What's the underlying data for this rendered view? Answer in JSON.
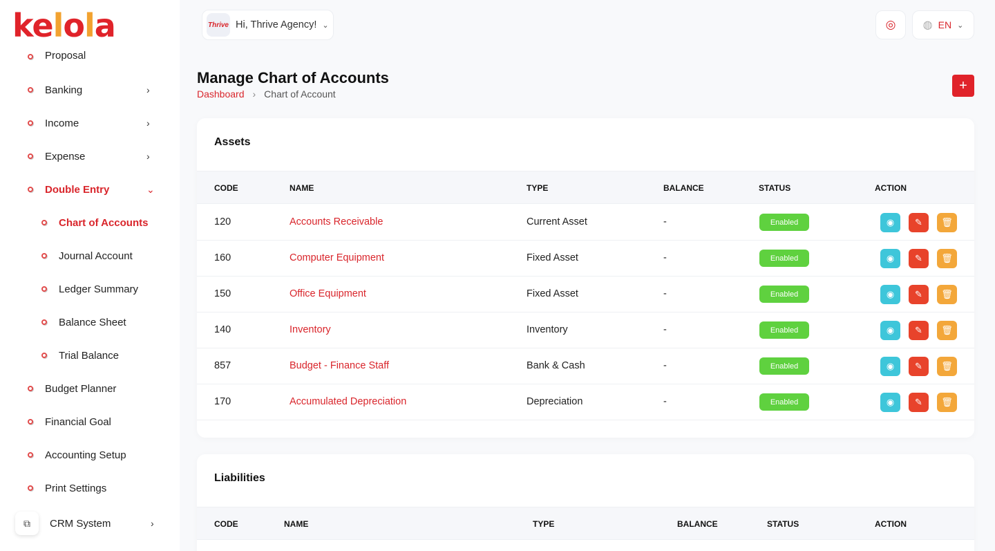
{
  "brand": {
    "logo_text": "kelola"
  },
  "header": {
    "greeting": "Hi, Thrive Agency!",
    "avatar_text": "Thrive",
    "language": "EN"
  },
  "sidebar": {
    "items": [
      {
        "label": "Proposal"
      },
      {
        "label": "Banking",
        "chevron": "›"
      },
      {
        "label": "Income",
        "chevron": "›"
      },
      {
        "label": "Expense",
        "chevron": "›"
      },
      {
        "label": "Double Entry",
        "chevron": "⌄"
      },
      {
        "label": "Chart of Accounts"
      },
      {
        "label": "Journal Account"
      },
      {
        "label": "Ledger Summary"
      },
      {
        "label": "Balance Sheet"
      },
      {
        "label": "Trial Balance"
      },
      {
        "label": "Budget Planner"
      },
      {
        "label": "Financial Goal"
      },
      {
        "label": "Accounting Setup"
      },
      {
        "label": "Print Settings"
      }
    ],
    "crm": {
      "label": "CRM System",
      "chevron": "›"
    }
  },
  "page": {
    "title": "Manage Chart of Accounts",
    "breadcrumb": {
      "home": "Dashboard",
      "separator": "›",
      "current": "Chart of Account"
    },
    "add_label": "+"
  },
  "columns": {
    "code": "CODE",
    "name": "NAME",
    "type": "TYPE",
    "balance": "BALANCE",
    "status": "STATUS",
    "action": "ACTION"
  },
  "assets": {
    "title": "Assets",
    "rows": [
      {
        "code": "120",
        "name": "Accounts Receivable",
        "type": "Current Asset",
        "balance": "-",
        "status": "Enabled"
      },
      {
        "code": "160",
        "name": "Computer Equipment",
        "type": "Fixed Asset",
        "balance": "-",
        "status": "Enabled"
      },
      {
        "code": "150",
        "name": "Office Equipment",
        "type": "Fixed Asset",
        "balance": "-",
        "status": "Enabled"
      },
      {
        "code": "140",
        "name": "Inventory",
        "type": "Inventory",
        "balance": "-",
        "status": "Enabled"
      },
      {
        "code": "857",
        "name": "Budget - Finance Staff",
        "type": "Bank & Cash",
        "balance": "-",
        "status": "Enabled"
      },
      {
        "code": "170",
        "name": "Accumulated Depreciation",
        "type": "Depreciation",
        "balance": "-",
        "status": "Enabled"
      }
    ]
  },
  "liabilities": {
    "title": "Liabilities"
  },
  "icons": {
    "view": "eye-icon",
    "edit": "pencil-icon",
    "delete": "trash-icon",
    "notification": "notification-icon",
    "language": "globe-icon",
    "crm": "crm-icon"
  },
  "colors": {
    "accent": "#e0232a",
    "enabled": "#5fd13f",
    "view": "#3ec6da",
    "edit": "#e8432b",
    "delete": "#f3a73a"
  }
}
